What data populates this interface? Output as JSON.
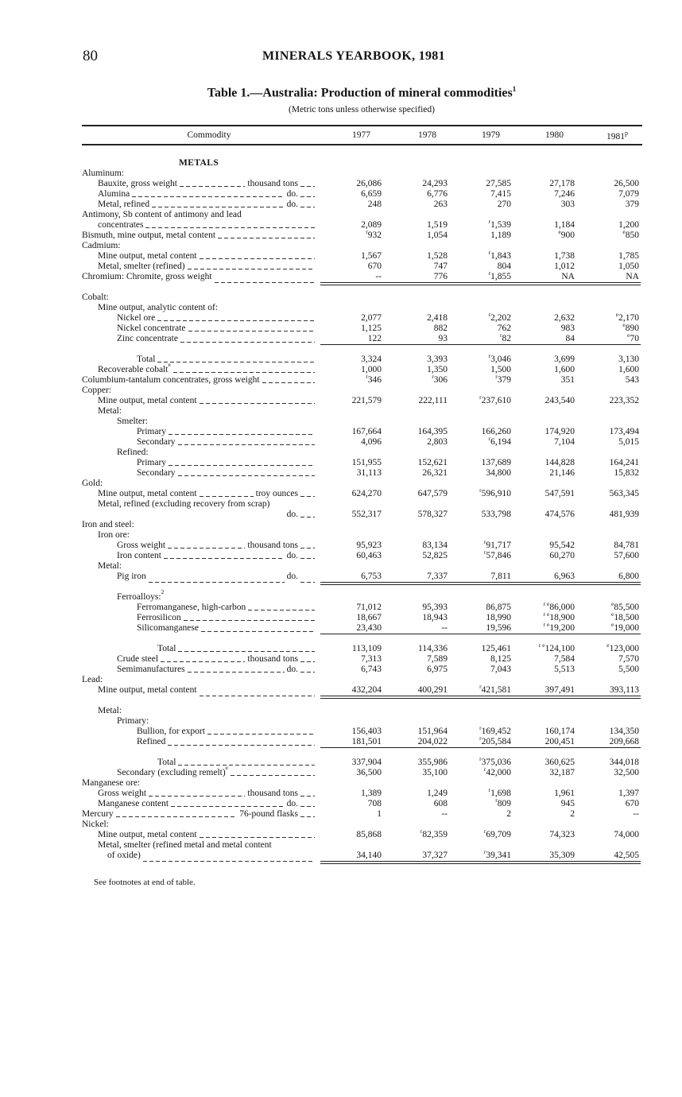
{
  "page": {
    "number": "80",
    "running_head": "MINERALS YEARBOOK, 1981"
  },
  "table": {
    "title": "Table 1.—Australia: Production of mineral commodities",
    "title_sup": "1",
    "subtitle": "(Metric tons unless otherwise specified)",
    "columns": {
      "commodity": "Commodity",
      "years": [
        "1977",
        "1978",
        "1979",
        "1980",
        "1981"
      ],
      "last_sup": "p"
    },
    "rows": [
      {
        "type": "heading",
        "label": "METALS"
      },
      {
        "label": "Aluminum:",
        "level": 0
      },
      {
        "label": "Bauxite, gross weight",
        "unit": "thousand tons",
        "level": 1,
        "values": [
          "26,086",
          "24,293",
          "27,585",
          "27,178",
          "26,500"
        ]
      },
      {
        "label": "Alumina",
        "unit": "do.",
        "level": 1,
        "values": [
          "6,659",
          "6,776",
          "7,415",
          "7,246",
          "7,079"
        ]
      },
      {
        "label": "Metal, refined",
        "unit": "do.",
        "level": 1,
        "values": [
          "248",
          "263",
          "270",
          "303",
          "379"
        ]
      },
      {
        "label": "Antimony, Sb content of antimony and lead",
        "level": 0
      },
      {
        "label": "concentrates",
        "level": 1,
        "values": [
          "2,089",
          "1,519",
          {
            "note": "r",
            "value": "1,539"
          },
          "1,184",
          "1,200"
        ]
      },
      {
        "label": "Bismuth, mine output, metal content",
        "level": 0,
        "values": [
          {
            "note": "r",
            "value": "932"
          },
          "1,054",
          "1,189",
          {
            "note": "e",
            "value": "900"
          },
          {
            "note": "e",
            "value": "850"
          }
        ]
      },
      {
        "label": "Cadmium:",
        "level": 0
      },
      {
        "label": "Mine output, metal content",
        "level": 1,
        "values": [
          "1,567",
          "1,528",
          {
            "note": "r",
            "value": "1,843"
          },
          "1,738",
          "1,785"
        ]
      },
      {
        "label": "Metal, smelter (refined)",
        "level": 1,
        "values": [
          "670",
          "747",
          "804",
          "1,012",
          "1,050"
        ]
      },
      {
        "label": "Chromium: Chromite, gross weight",
        "level": 0,
        "values": [
          "--",
          "776",
          {
            "note": "r",
            "value": "1,855"
          },
          "NA",
          "NA"
        ],
        "rule": "double"
      },
      {
        "type": "spacer"
      },
      {
        "label": "Cobalt:",
        "level": 0
      },
      {
        "label": "Mine output, analytic content of:",
        "level": 1
      },
      {
        "label": "Nickel ore",
        "level": 2,
        "values": [
          "2,077",
          "2,418",
          {
            "note": "r",
            "value": "2,202"
          },
          "2,632",
          {
            "note": "e",
            "value": "2,170"
          }
        ]
      },
      {
        "label": "Nickel concentrate",
        "level": 2,
        "values": [
          "1,125",
          "882",
          "762",
          "983",
          {
            "note": "e",
            "value": "890"
          }
        ]
      },
      {
        "label": "Zinc concentrate",
        "level": 2,
        "values": [
          "122",
          "93",
          {
            "note": "r",
            "value": "82"
          },
          "84",
          {
            "note": "e",
            "value": "70"
          }
        ],
        "rule": "single"
      },
      {
        "type": "spacer"
      },
      {
        "label": "Total",
        "level": 3,
        "values": [
          "3,324",
          "3,393",
          {
            "note": "r",
            "value": "3,046"
          },
          "3,699",
          "3,130"
        ]
      },
      {
        "label": "Recoverable cobalt",
        "label_sup": "e",
        "level": 1,
        "values": [
          "1,000",
          "1,350",
          "1,500",
          "1,600",
          "1,600"
        ]
      },
      {
        "label": "Columbium-tantalum concentrates, gross weight",
        "level": 0,
        "values": [
          {
            "note": "r",
            "value": "346"
          },
          {
            "note": "r",
            "value": "306"
          },
          {
            "note": "r",
            "value": "379"
          },
          "351",
          "543"
        ]
      },
      {
        "label": "Copper:",
        "level": 0
      },
      {
        "label": "Mine output, metal content",
        "level": 1,
        "values": [
          "221,579",
          "222,111",
          {
            "note": "r",
            "value": "237,610"
          },
          "243,540",
          "223,352"
        ]
      },
      {
        "label": "Metal:",
        "level": 1
      },
      {
        "label": "Smelter:",
        "level": 2
      },
      {
        "label": "Primary",
        "level": 3,
        "values": [
          "167,664",
          "164,395",
          "166,260",
          "174,920",
          "173,494"
        ]
      },
      {
        "label": "Secondary",
        "level": 3,
        "values": [
          "4,096",
          "2,803",
          {
            "note": "r",
            "value": "6,194"
          },
          "7,104",
          "5,015"
        ]
      },
      {
        "label": "Refined:",
        "level": 2
      },
      {
        "label": "Primary",
        "level": 3,
        "values": [
          "151,955",
          "152,621",
          "137,689",
          "144,828",
          "164,241"
        ]
      },
      {
        "label": "Secondary",
        "level": 3,
        "values": [
          "31,113",
          "26,321",
          "34,800",
          "21,146",
          "15,832"
        ]
      },
      {
        "label": "Gold:",
        "level": 0
      },
      {
        "label": "Mine output, metal content",
        "unit": "troy ounces",
        "level": 1,
        "values": [
          "624,270",
          "647,579",
          {
            "note": "r",
            "value": "596,910"
          },
          "547,591",
          "563,345"
        ]
      },
      {
        "label": "Metal, refined (excluding recovery from scrap)",
        "level": 1
      },
      {
        "label": "",
        "unit": "do.",
        "level": 1,
        "values": [
          "552,317",
          "578,327",
          "533,798",
          "474,576",
          "481,939"
        ]
      },
      {
        "label": "Iron and steel:",
        "level": 0
      },
      {
        "label": "Iron ore:",
        "level": 1
      },
      {
        "label": "Gross weight",
        "unit": "thousand tons",
        "level": 2,
        "values": [
          "95,923",
          "83,134",
          {
            "note": "r",
            "value": "91,717"
          },
          "95,542",
          "84,781"
        ]
      },
      {
        "label": "Iron content",
        "unit": "do.",
        "level": 2,
        "values": [
          "60,463",
          "52,825",
          {
            "note": "r",
            "value": "57,846"
          },
          "60,270",
          "57,600"
        ]
      },
      {
        "label": "Metal:",
        "level": 1
      },
      {
        "label": "Pig iron",
        "unit": "do.",
        "level": 2,
        "values": [
          "6,753",
          "7,337",
          "7,811",
          "6,963",
          "6,800"
        ],
        "rule": "double"
      },
      {
        "type": "spacer"
      },
      {
        "label": "Ferroalloys:",
        "label_sup": "2",
        "level": 2
      },
      {
        "label": "Ferromanganese, high-carbon",
        "level": 3,
        "values": [
          "71,012",
          "95,393",
          "86,875",
          {
            "note": "r e",
            "value": "86,000"
          },
          {
            "note": "e",
            "value": "85,500"
          }
        ]
      },
      {
        "label": "Ferrosilicon",
        "level": 3,
        "values": [
          "18,667",
          "18,943",
          "18,990",
          {
            "note": "r e",
            "value": "18,900"
          },
          {
            "note": "e",
            "value": "18,500"
          }
        ]
      },
      {
        "label": "Silicomanganese",
        "level": 3,
        "values": [
          "23,430",
          "--",
          "19,596",
          {
            "note": "r e",
            "value": "19,200"
          },
          {
            "note": "e",
            "value": "19,000"
          }
        ],
        "rule": "single"
      },
      {
        "type": "spacer"
      },
      {
        "label": "Total",
        "level": 4,
        "values": [
          "113,109",
          "114,336",
          "125,461",
          {
            "note": "r e",
            "value": "124,100"
          },
          {
            "note": "e",
            "value": "123,000"
          }
        ]
      },
      {
        "label": "Crude steel",
        "unit": "thousand tons",
        "level": 2,
        "values": [
          "7,313",
          "7,589",
          "8,125",
          "7,584",
          "7,570"
        ]
      },
      {
        "label": "Semimanufactures",
        "unit": "do.",
        "level": 2,
        "values": [
          "6,743",
          "6,975",
          "7,043",
          "5,513",
          "5,500"
        ]
      },
      {
        "label": "Lead:",
        "level": 0
      },
      {
        "label": "Mine output, metal content",
        "level": 1,
        "values": [
          "432,204",
          "400,291",
          {
            "note": "r",
            "value": "421,581"
          },
          "397,491",
          "393,113"
        ],
        "rule": "double"
      },
      {
        "type": "spacer"
      },
      {
        "label": "Metal:",
        "level": 1
      },
      {
        "label": "Primary:",
        "level": 2
      },
      {
        "label": "Bullion, for export",
        "level": 3,
        "values": [
          "156,403",
          "151,964",
          {
            "note": "r",
            "value": "169,452"
          },
          "160,174",
          "134,350"
        ]
      },
      {
        "label": "Refined",
        "level": 3,
        "values": [
          "181,501",
          "204,022",
          {
            "note": "r",
            "value": "205,584"
          },
          "200,451",
          "209,668"
        ],
        "rule": "single"
      },
      {
        "type": "spacer"
      },
      {
        "label": "Total",
        "level": 4,
        "values": [
          "337,904",
          "355,986",
          {
            "note": "r",
            "value": "375,036"
          },
          "360,625",
          "344,018"
        ]
      },
      {
        "label": "Secondary (excluding remelt)",
        "label_sup": "e",
        "level": 2,
        "values": [
          "36,500",
          "35,100",
          {
            "note": "r",
            "value": "42,000"
          },
          "32,187",
          "32,500"
        ]
      },
      {
        "label": "Manganese ore:",
        "level": 0
      },
      {
        "label": "Gross weight",
        "unit": "thousand tons",
        "level": 1,
        "values": [
          "1,389",
          "1,249",
          {
            "note": "r",
            "value": "1,698"
          },
          "1,961",
          "1,397"
        ]
      },
      {
        "label": "Manganese content",
        "unit": "do.",
        "level": 1,
        "values": [
          "708",
          "608",
          {
            "note": "r",
            "value": "809"
          },
          "945",
          "670"
        ]
      },
      {
        "label": "Mercury",
        "unit": "76-pound flasks",
        "level": 0,
        "values": [
          "1",
          "--",
          "2",
          "2",
          "--"
        ]
      },
      {
        "label": "Nickel:",
        "level": 0
      },
      {
        "label": "Mine output, metal content",
        "level": 1,
        "values": [
          "85,868",
          {
            "note": "r",
            "value": "82,359"
          },
          {
            "note": "r",
            "value": "69,709"
          },
          "74,323",
          "74,000"
        ]
      },
      {
        "label": "Metal, smelter (refined metal and metal content",
        "level": 1
      },
      {
        "label": "of oxide)",
        "level": 5,
        "values": [
          "34,140",
          "37,327",
          {
            "note": "r",
            "value": "39,341"
          },
          "35,309",
          "42,505"
        ],
        "rule": "double"
      }
    ],
    "footnote": "See footnotes at end of table."
  }
}
